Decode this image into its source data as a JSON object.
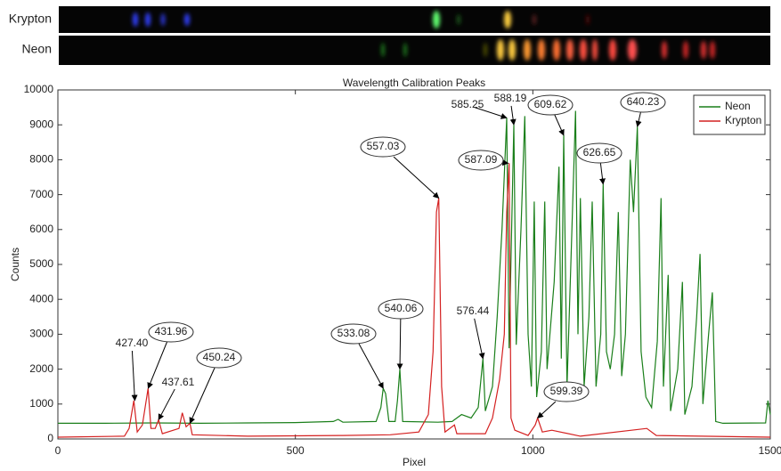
{
  "spectra": {
    "labels": [
      "Krypton",
      "Neon"
    ]
  },
  "chart_data": {
    "type": "line",
    "title": "Wavelength Calibration Peaks",
    "x_label": "Pixel",
    "y_label": "Counts",
    "xlim": [
      0,
      1500
    ],
    "xticks": [
      0,
      500,
      1000,
      1500
    ],
    "ylim": [
      0,
      10000
    ],
    "yticks": [
      0,
      1000,
      2000,
      3000,
      4000,
      5000,
      6000,
      7000,
      8000,
      9000,
      10000
    ],
    "grid": false,
    "legend": "upper right",
    "series": [
      {
        "name": "Neon",
        "color": "#1a7f1a",
        "x": [
          0,
          100,
          200,
          300,
          400,
          500,
          580,
          590,
          600,
          670,
          680,
          685,
          690,
          697,
          710,
          715,
          720,
          726,
          800,
          830,
          850,
          870,
          885,
          895,
          900,
          915,
          925,
          935,
          945,
          950,
          960,
          965,
          975,
          983,
          990,
          997,
          1003,
          1008,
          1018,
          1025,
          1030,
          1045,
          1055,
          1060,
          1065,
          1072,
          1080,
          1090,
          1095,
          1100,
          1108,
          1118,
          1125,
          1133,
          1143,
          1148,
          1155,
          1163,
          1172,
          1180,
          1187,
          1195,
          1205,
          1212,
          1220,
          1228,
          1238,
          1250,
          1262,
          1270,
          1275,
          1285,
          1290,
          1305,
          1315,
          1320,
          1335,
          1345,
          1352,
          1358,
          1370,
          1378,
          1385,
          1400,
          1490,
          1495,
          1500
        ],
        "values": [
          450,
          450,
          460,
          450,
          460,
          470,
          500,
          560,
          480,
          500,
          900,
          1450,
          1300,
          500,
          500,
          1100,
          2000,
          500,
          480,
          500,
          700,
          600,
          900,
          2300,
          800,
          1500,
          3500,
          6000,
          9200,
          2600,
          9000,
          2700,
          6000,
          9250,
          3000,
          1500,
          6800,
          1200,
          2500,
          6800,
          2000,
          4500,
          7800,
          2300,
          8700,
          1500,
          5000,
          9400,
          3000,
          6900,
          1500,
          3500,
          6800,
          1500,
          3000,
          7300,
          2500,
          2000,
          3000,
          6500,
          1800,
          3000,
          8000,
          6500,
          8950,
          2500,
          1200,
          900,
          2800,
          6900,
          1500,
          4700,
          800,
          2000,
          4500,
          700,
          1500,
          3500,
          5300,
          1000,
          3000,
          4200,
          500,
          450,
          460,
          1100,
          700
        ]
      },
      {
        "name": "Krypton",
        "color": "#d42020",
        "x": [
          0,
          140,
          150,
          160,
          167,
          178,
          190,
          196,
          205,
          212,
          220,
          255,
          262,
          270,
          278,
          283,
          400,
          600,
          700,
          760,
          780,
          790,
          797,
          802,
          808,
          815,
          835,
          840,
          900,
          915,
          930,
          940,
          945,
          950,
          954,
          962,
          990,
          1005,
          1010,
          1020,
          1040,
          1100,
          1240,
          1260,
          1500
        ],
        "values": [
          50,
          80,
          300,
          1100,
          200,
          400,
          1450,
          300,
          300,
          550,
          150,
          300,
          750,
          350,
          450,
          120,
          80,
          100,
          120,
          200,
          700,
          2500,
          6500,
          6900,
          1500,
          200,
          400,
          150,
          150,
          600,
          1700,
          3000,
          6500,
          7900,
          600,
          250,
          100,
          400,
          600,
          200,
          250,
          80,
          300,
          100,
          50
        ]
      }
    ],
    "annotations": [
      {
        "text": "427.40",
        "series": 1,
        "x": 162,
        "y": 1100,
        "boxed": false
      },
      {
        "text": "431.96",
        "series": 1,
        "x": 190,
        "y": 1450,
        "boxed": true
      },
      {
        "text": "437.61",
        "series": 1,
        "x": 212,
        "y": 550,
        "boxed": false
      },
      {
        "text": "450.24",
        "series": 1,
        "x": 278,
        "y": 450,
        "boxed": true
      },
      {
        "text": "557.03",
        "series": 1,
        "x": 802,
        "y": 6900,
        "boxed": true
      },
      {
        "text": "587.09",
        "series": 1,
        "x": 948,
        "y": 7900,
        "boxed": true
      },
      {
        "text": "599.39",
        "series": 1,
        "x": 1010,
        "y": 600,
        "boxed": true
      },
      {
        "text": "533.08",
        "series": 0,
        "x": 685,
        "y": 1450,
        "boxed": true
      },
      {
        "text": "540.06",
        "series": 0,
        "x": 720,
        "y": 2000,
        "boxed": true
      },
      {
        "text": "576.44",
        "series": 0,
        "x": 895,
        "y": 2300,
        "boxed": false
      },
      {
        "text": "585.25",
        "series": 0,
        "x": 945,
        "y": 9200,
        "boxed": false
      },
      {
        "text": "588.19",
        "series": 0,
        "x": 960,
        "y": 9000,
        "boxed": false
      },
      {
        "text": "609.62",
        "series": 0,
        "x": 1065,
        "y": 8700,
        "boxed": true
      },
      {
        "text": "626.65",
        "series": 0,
        "x": 1148,
        "y": 7300,
        "boxed": true
      },
      {
        "text": "640.23",
        "series": 0,
        "x": 1220,
        "y": 8950,
        "boxed": true
      }
    ]
  }
}
